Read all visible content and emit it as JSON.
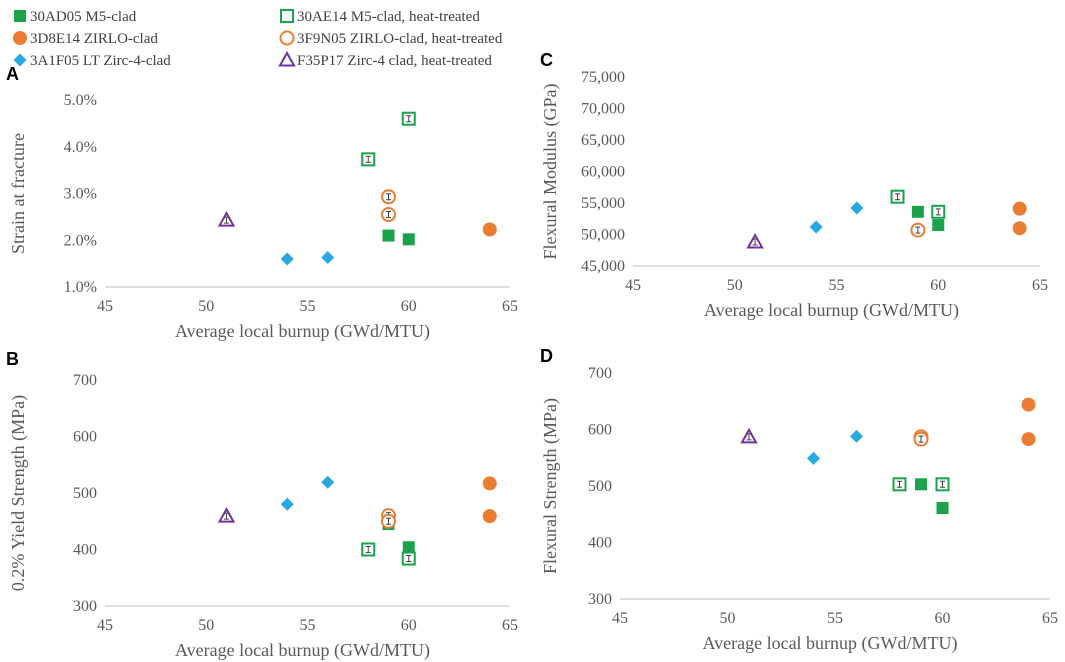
{
  "colors": {
    "green": "#1aa34a",
    "orange": "#ea7d32",
    "blue": "#26a9e0",
    "purple": "#7030a0",
    "axis": "#bfbfbf",
    "text": "#595959"
  },
  "legend": [
    {
      "label": "30AD05 M5-clad",
      "marker": "square-filled",
      "color": "#1aa34a"
    },
    {
      "label": "30AE14 M5-clad, heat-treated",
      "marker": "square-open",
      "color": "#1aa34a"
    },
    {
      "label": "3D8E14 ZIRLO-clad",
      "marker": "circle-filled",
      "color": "#ea7d32"
    },
    {
      "label": "3F9N05 ZIRLO-clad, heat-treated",
      "marker": "circle-open",
      "color": "#ea7d32"
    },
    {
      "label": "3A1F05 LT Zirc-4-clad",
      "marker": "diamond-filled",
      "color": "#26a9e0"
    },
    {
      "label": "F35P17 Zirc-4 clad, heat-treated",
      "marker": "triangle-open",
      "color": "#7030a0"
    }
  ],
  "chart_data": [
    {
      "panel": "A",
      "type": "scatter",
      "xlabel": "Average local burnup (GWd/MTU)",
      "ylabel": "Strain at fracture",
      "xlim": [
        45,
        65
      ],
      "ylim": [
        1.0,
        5.0
      ],
      "xticks": [
        "45",
        "50",
        "55",
        "60",
        "65"
      ],
      "yticks": [
        "1.0%",
        "2.0%",
        "3.0%",
        "4.0%",
        "5.0%"
      ],
      "series": [
        {
          "name": "30AD05 M5-clad",
          "points": [
            [
              59,
              2.1
            ],
            [
              60,
              2.02
            ]
          ]
        },
        {
          "name": "30AE14 M5-clad, heat-treated",
          "points": [
            [
              58,
              3.73
            ],
            [
              60,
              4.6
            ]
          ]
        },
        {
          "name": "3D8E14 ZIRLO-clad",
          "points": [
            [
              64,
              2.23
            ]
          ]
        },
        {
          "name": "3F9N05 ZIRLO-clad, heat-treated",
          "points": [
            [
              59,
              2.93
            ],
            [
              59,
              2.55
            ]
          ]
        },
        {
          "name": "3A1F05 LT Zirc-4-clad",
          "points": [
            [
              54,
              1.6
            ],
            [
              56,
              1.63
            ]
          ]
        },
        {
          "name": "F35P17 Zirc-4 clad, heat-treated",
          "points": [
            [
              51,
              2.43
            ]
          ]
        }
      ]
    },
    {
      "panel": "B",
      "type": "scatter",
      "xlabel": "Average local burnup (GWd/MTU)",
      "ylabel": "0.2% Yield Strength (MPa)",
      "xlim": [
        45,
        65
      ],
      "ylim": [
        300,
        700
      ],
      "xticks": [
        "45",
        "50",
        "55",
        "60",
        "65"
      ],
      "yticks": [
        "300",
        "400",
        "500",
        "600",
        "700"
      ],
      "series": [
        {
          "name": "30AD05 M5-clad",
          "points": [
            [
              59,
              445
            ],
            [
              60,
              404
            ]
          ]
        },
        {
          "name": "30AE14 M5-clad, heat-treated",
          "points": [
            [
              58,
              400
            ],
            [
              60,
              384
            ]
          ]
        },
        {
          "name": "3D8E14 ZIRLO-clad",
          "points": [
            [
              64,
              517
            ],
            [
              64,
              459
            ]
          ]
        },
        {
          "name": "3F9N05 ZIRLO-clad, heat-treated",
          "points": [
            [
              59,
              460
            ],
            [
              59,
              450
            ]
          ]
        },
        {
          "name": "3A1F05 LT Zirc-4-clad",
          "points": [
            [
              54,
              480
            ],
            [
              56,
              519
            ]
          ]
        },
        {
          "name": "F35P17 Zirc-4 clad, heat-treated",
          "points": [
            [
              51,
              459
            ]
          ]
        }
      ]
    },
    {
      "panel": "C",
      "type": "scatter",
      "xlabel": "Average local burnup (GWd/MTU)",
      "ylabel": "Flexural Modulus (GPa)",
      "xlim": [
        45,
        65
      ],
      "ylim": [
        45000,
        75000
      ],
      "xticks": [
        "45",
        "50",
        "55",
        "60",
        "65"
      ],
      "yticks": [
        "45,000",
        "50,000",
        "55,000",
        "60,000",
        "65,000",
        "70,000",
        "75,000"
      ],
      "series": [
        {
          "name": "30AD05 M5-clad",
          "points": [
            [
              59,
              53600
            ],
            [
              60,
              51500
            ]
          ]
        },
        {
          "name": "30AE14 M5-clad, heat-treated",
          "points": [
            [
              58,
              56000
            ],
            [
              60,
              53600
            ]
          ]
        },
        {
          "name": "3D8E14 ZIRLO-clad",
          "points": [
            [
              64,
              54100
            ],
            [
              64,
              51000
            ]
          ]
        },
        {
          "name": "3F9N05 ZIRLO-clad, heat-treated",
          "points": [
            [
              59,
              50700
            ]
          ]
        },
        {
          "name": "3A1F05 LT Zirc-4-clad",
          "points": [
            [
              54,
              51200
            ],
            [
              56,
              54200
            ]
          ]
        },
        {
          "name": "F35P17 Zirc-4 clad, heat-treated",
          "points": [
            [
              51,
              48800
            ]
          ]
        }
      ]
    },
    {
      "panel": "D",
      "type": "scatter",
      "xlabel": "Average local burnup (GWd/MTU)",
      "ylabel": "Flexural Strength (MPa)",
      "xlim": [
        45,
        65
      ],
      "ylim": [
        300,
        700
      ],
      "xticks": [
        "45",
        "50",
        "55",
        "60",
        "65"
      ],
      "yticks": [
        "300",
        "400",
        "500",
        "600",
        "700"
      ],
      "series": [
        {
          "name": "30AD05 M5-clad",
          "points": [
            [
              59,
              503
            ],
            [
              60,
              461
            ]
          ]
        },
        {
          "name": "30AE14 M5-clad, heat-treated",
          "points": [
            [
              58,
              503
            ],
            [
              60,
              503
            ]
          ]
        },
        {
          "name": "3D8E14 ZIRLO-clad",
          "points": [
            [
              64,
              644
            ],
            [
              64,
              583
            ]
          ]
        },
        {
          "name": "3F9N05 ZIRLO-clad, heat-treated",
          "points": [
            [
              59,
              587
            ],
            [
              59,
              583
            ]
          ]
        },
        {
          "name": "3A1F05 LT Zirc-4-clad",
          "points": [
            [
              54,
              549
            ],
            [
              56,
              588
            ]
          ]
        },
        {
          "name": "F35P17 Zirc-4 clad, heat-treated",
          "points": [
            [
              51,
              587
            ]
          ]
        }
      ]
    }
  ]
}
